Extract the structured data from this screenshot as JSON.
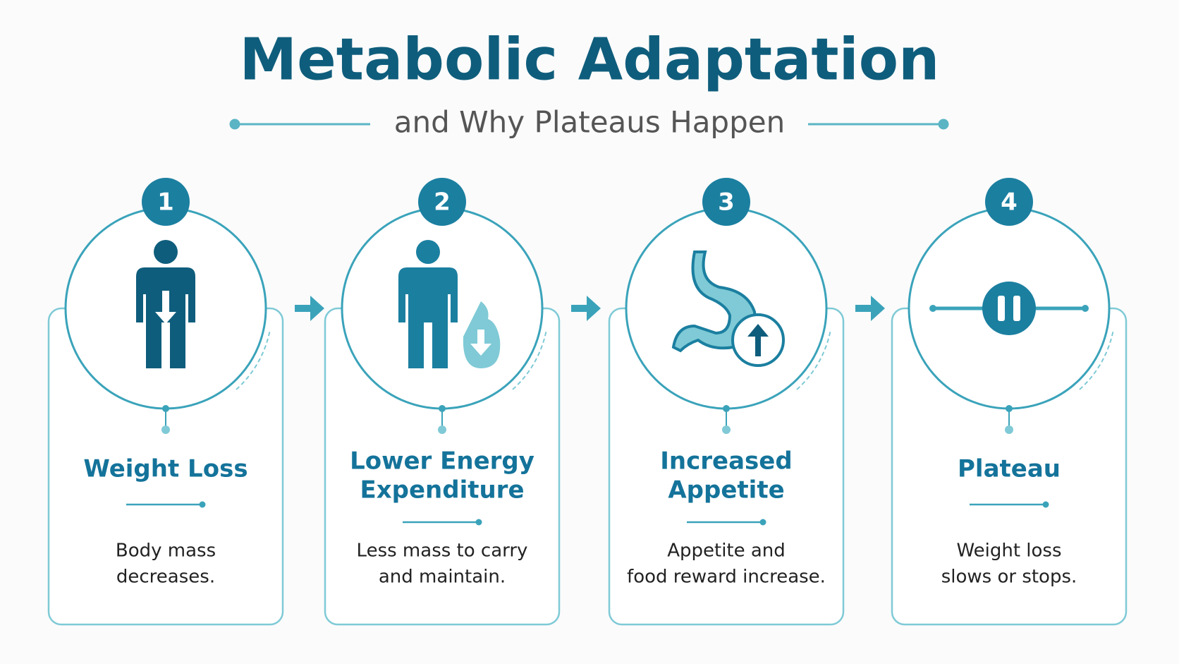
{
  "header": {
    "title": "Metabolic Adaptation",
    "subtitle": "and Why Plateaus Happen"
  },
  "steps": [
    {
      "number": "1",
      "title_lines": [
        "Weight Loss"
      ],
      "description_lines": [
        "Body mass",
        "decreases."
      ]
    },
    {
      "number": "2",
      "title_lines": [
        "Lower Energy",
        "Expenditure"
      ],
      "description_lines": [
        "Less mass to carry",
        "and maintain."
      ]
    },
    {
      "number": "3",
      "title_lines": [
        "Increased",
        "Appetite"
      ],
      "description_lines": [
        "Appetite and",
        "food reward increase."
      ]
    },
    {
      "number": "4",
      "title_lines": [
        "Plateau"
      ],
      "description_lines": [
        "Weight loss",
        "slows or stops."
      ]
    }
  ]
}
